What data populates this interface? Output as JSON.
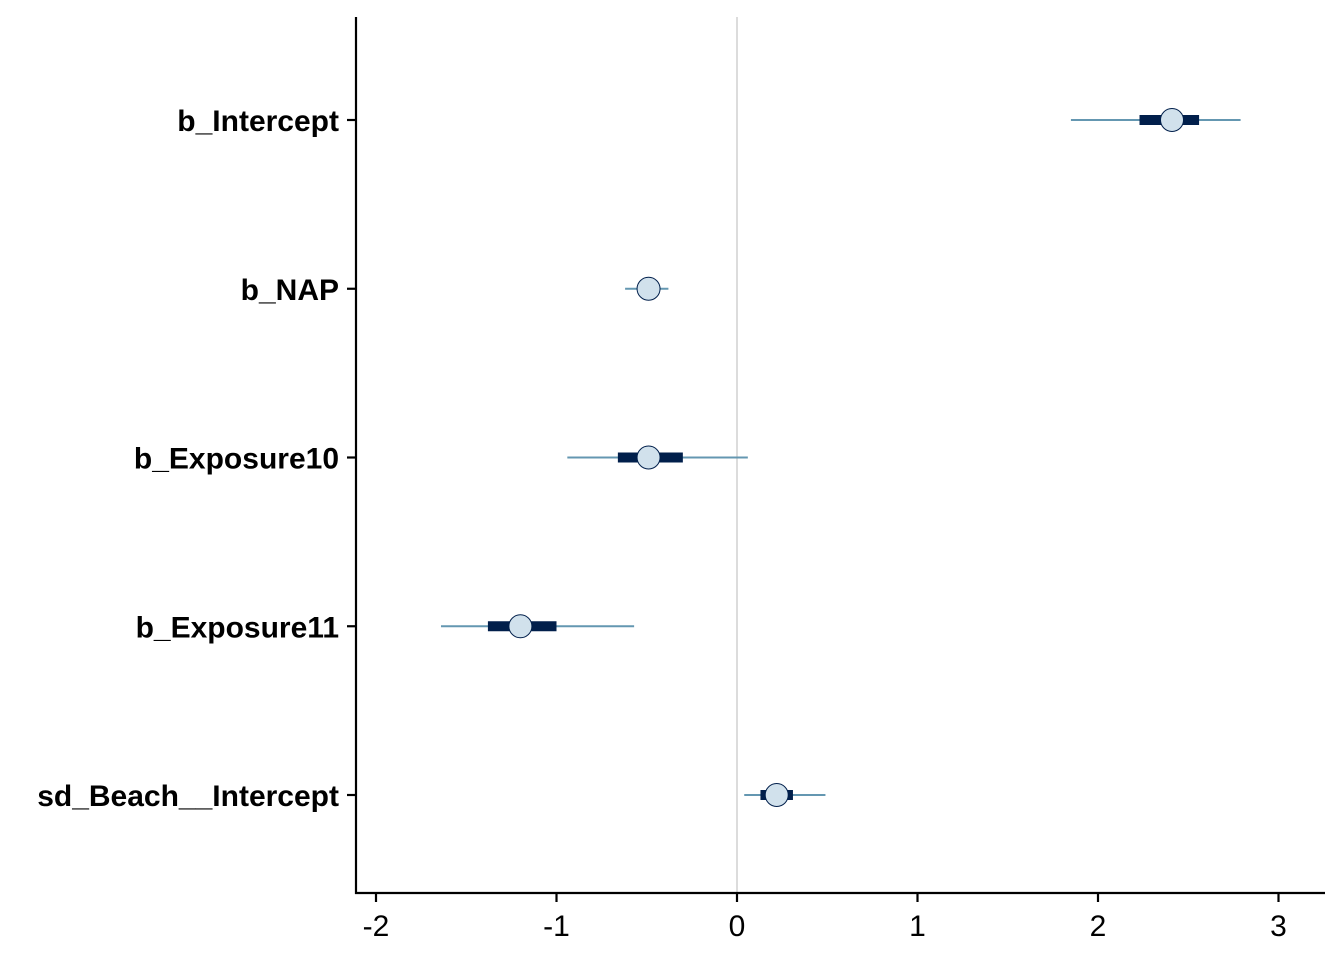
{
  "chart_data": {
    "type": "interval",
    "title": "",
    "xlabel": "",
    "ylabel": "",
    "xlim": [
      -2.1,
      3.25
    ],
    "x_ticks": [
      -2,
      -1,
      0,
      1,
      2,
      3
    ],
    "x_tick_labels": [
      "-2",
      "-1",
      "0",
      "1",
      "2",
      "3"
    ],
    "reference_line_x": 0,
    "grid": false,
    "legend": "none",
    "parameters": [
      {
        "label": "b_Intercept",
        "estimate": 2.41,
        "inner": [
          2.23,
          2.56
        ],
        "outer": [
          1.85,
          2.79
        ]
      },
      {
        "label": "b_NAP",
        "estimate": -0.49,
        "inner": [
          -0.53,
          -0.45
        ],
        "outer": [
          -0.62,
          -0.38
        ]
      },
      {
        "label": "b_Exposure10",
        "estimate": -0.49,
        "inner": [
          -0.66,
          -0.3
        ],
        "outer": [
          -0.94,
          0.06
        ]
      },
      {
        "label": "b_Exposure11",
        "estimate": -1.2,
        "inner": [
          -1.38,
          -1.0
        ],
        "outer": [
          -1.64,
          -0.57
        ]
      },
      {
        "label": "sd_Beach__Intercept",
        "estimate": 0.22,
        "inner": [
          0.13,
          0.31
        ],
        "outer": [
          0.04,
          0.49
        ]
      }
    ],
    "colors": {
      "outer_line": "#6497b1",
      "inner_bar": "#011f4b",
      "point_fill": "#d1e1ec",
      "point_stroke": "#011f4b",
      "reference_line": "#dcdcdc",
      "axis": "#000000"
    }
  }
}
